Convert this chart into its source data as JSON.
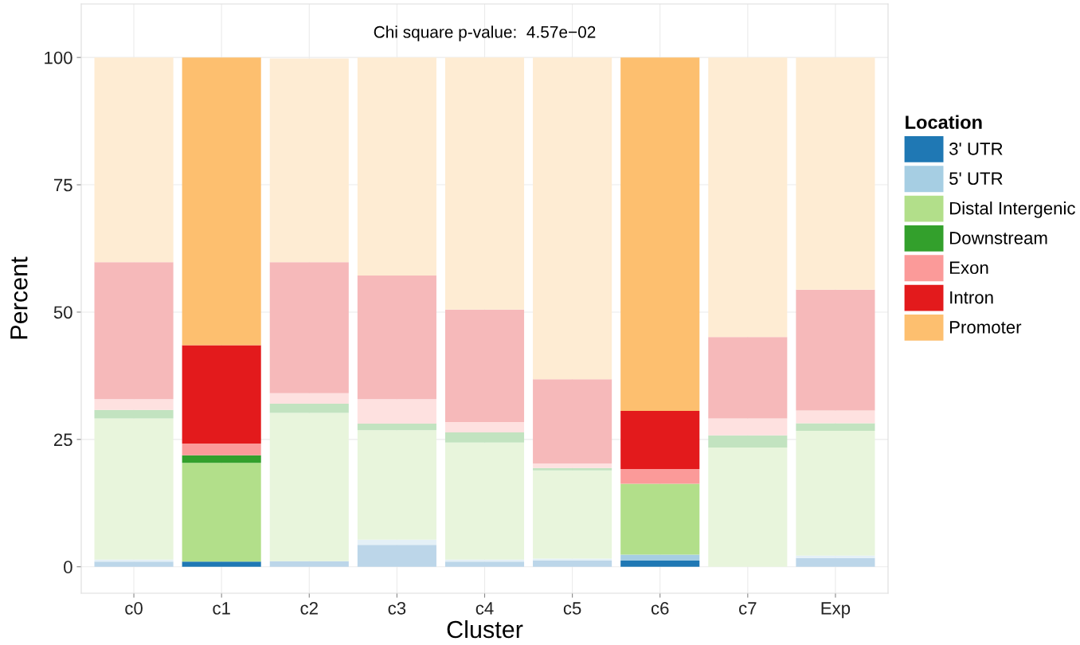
{
  "chart_data": {
    "type": "bar",
    "stacked": true,
    "title": "Chi square p-value:  4.57e−02",
    "xlabel": "Cluster",
    "ylabel": "Percent",
    "legend_title": "Location",
    "legend": "right",
    "categories": [
      "c0",
      "c1",
      "c2",
      "c3",
      "c4",
      "c5",
      "c6",
      "c7",
      "Exp"
    ],
    "ylim": [
      -5.2,
      110.5
    ],
    "yticks": [
      0,
      25,
      50,
      75,
      100
    ],
    "grid": true,
    "series": [
      {
        "name": "3' UTR",
        "color": "#1f78b4",
        "colors": [
          "#bcd6e9",
          "#1f78b4",
          "#bcd6e9",
          "#bcd6e9",
          "#bcd6e9",
          "#bcd6e9",
          "#1f78b4",
          "#bcd6e9",
          "#bcd6e9"
        ],
        "values": [
          1.0,
          1.0,
          1.1,
          4.3,
          1.0,
          1.2,
          1.2,
          0,
          1.7
        ]
      },
      {
        "name": "5' UTR",
        "color": "#a6cee3",
        "colors": [
          "#e4f0f7",
          "#a6cee3",
          "#e4f0f7",
          "#e4f0f7",
          "#e4f0f7",
          "#e4f0f7",
          "#a6cee3",
          "#e4f0f7",
          "#e4f0f7"
        ],
        "values": [
          0.4,
          0,
          null,
          1.0,
          0.4,
          0.4,
          1.2,
          0,
          0.5
        ]
      },
      {
        "name": "Distal Intergenic",
        "color": "#b2df8a",
        "colors": [
          "#e8f5dc",
          "#b2df8a",
          "#e8f5dc",
          "#e8f5dc",
          "#e8f5dc",
          "#e8f5dc",
          "#b2df8a",
          "#e8f5dc",
          "#e8f5dc"
        ],
        "values": [
          27.7,
          19.4,
          29.1,
          21.5,
          23.0,
          17.3,
          13.9,
          23.4,
          24.5
        ]
      },
      {
        "name": "Downstream",
        "color": "#33a02c",
        "colors": [
          "#c2e3c0",
          "#33a02c",
          "#c2e3c0",
          "#c2e3c0",
          "#c2e3c0",
          "#c2e3c0",
          "#33a02c",
          "#c2e3c0",
          "#c2e3c0"
        ],
        "values": [
          1.7,
          1.5,
          1.8,
          1.3,
          2.0,
          0.5,
          0,
          2.4,
          1.5
        ]
      },
      {
        "name": "Exon",
        "color": "#fb9a99",
        "colors": [
          "#fee1e0",
          "#fb9a99",
          "#fee1e0",
          "#fee1e0",
          "#fee1e0",
          "#fee1e0",
          "#fb9a99",
          "#fee1e0",
          "#fee1e0"
        ],
        "values": [
          2.1,
          2.3,
          2.1,
          4.8,
          2.0,
          0.9,
          2.9,
          3.3,
          2.5
        ]
      },
      {
        "name": "Intron",
        "color": "#e31a1c",
        "colors": [
          "#f6b9ba",
          "#e31a1c",
          "#f6b9ba",
          "#f6b9ba",
          "#f6b9ba",
          "#f6b9ba",
          "#e31a1c",
          "#f6b9ba",
          "#f6b9ba"
        ],
        "values": [
          26.9,
          19.3,
          25.7,
          24.3,
          22.1,
          16.5,
          11.4,
          16.0,
          23.7
        ]
      },
      {
        "name": "Promoter",
        "color": "#fdbf6f",
        "colors": [
          "#feecd3",
          "#fdbf6f",
          "#feecd3",
          "#feecd3",
          "#feecd3",
          "#feecd3",
          "#fdbf6f",
          "#feecd3",
          "#feecd3"
        ],
        "values": [
          40.2,
          56.5,
          40.0,
          42.8,
          49.5,
          63.2,
          69.4,
          54.9,
          45.6
        ]
      }
    ]
  }
}
